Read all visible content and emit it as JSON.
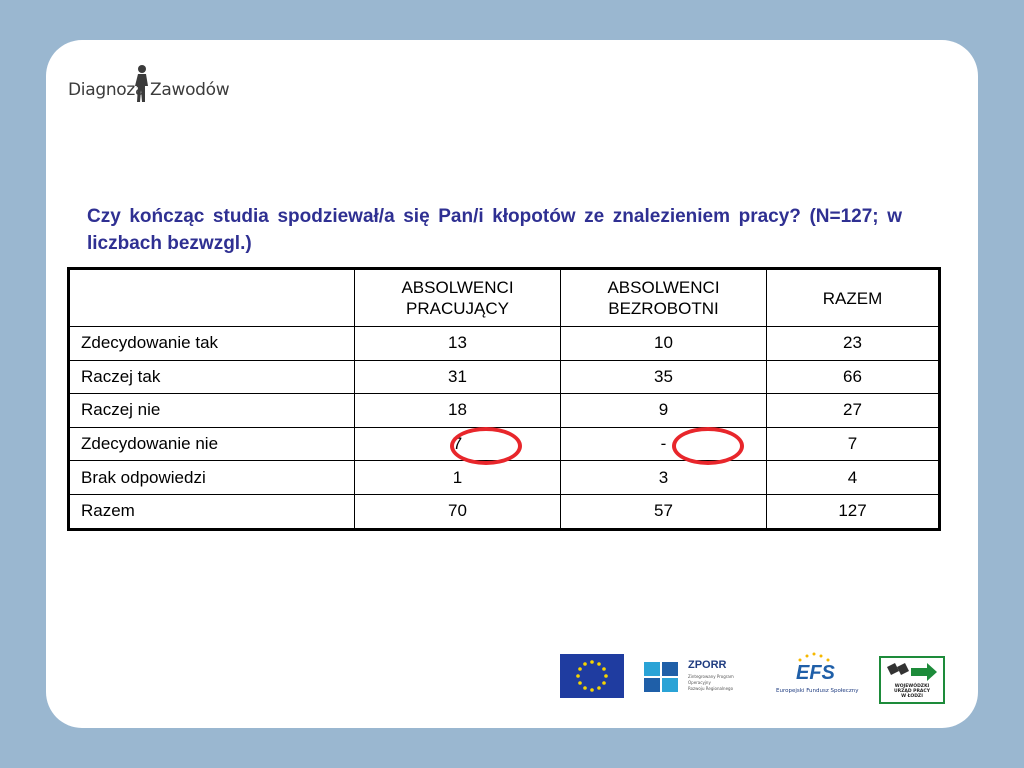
{
  "logo": {
    "part1": "Diagnoza",
    "part2": "Zawodów"
  },
  "question": "Czy kończąc studia spodziewał/a się Pan/i kłopotów ze znalezieniem pracy? (N=127; w liczbach bezwzgl.)",
  "table": {
    "headers": [
      "",
      [
        "ABSOLWENCI",
        "PRACUJĄCY"
      ],
      [
        "ABSOLWENCI",
        "BEZROBOTNI"
      ],
      "RAZEM"
    ],
    "rows": [
      {
        "label": "Zdecydowanie tak",
        "values": [
          "13",
          "10",
          "23"
        ]
      },
      {
        "label": "Raczej tak",
        "values": [
          "31",
          "35",
          "66"
        ]
      },
      {
        "label": "Raczej nie",
        "values": [
          "18",
          "9",
          "27"
        ]
      },
      {
        "label": "Zdecydowanie nie",
        "values": [
          "7",
          "-",
          "7"
        ]
      },
      {
        "label": "Brak odpowiedzi",
        "values": [
          "1",
          "3",
          "4"
        ]
      },
      {
        "label": "Razem",
        "values": [
          "70",
          "57",
          "127"
        ]
      }
    ]
  },
  "highlight_color": "#e8262b",
  "footer_logos": {
    "zporr": {
      "name": "ZPORR",
      "caption": [
        "Zintegrowany Program",
        "Operacyjny",
        "Rozwoju Regionalnego"
      ]
    },
    "efs": {
      "name": "EFS",
      "caption": "Europejski Fundusz Społeczny"
    },
    "wup": {
      "caption": [
        "WOJEWÓDZKI",
        "URZĄD PRACY",
        "W ŁODZI"
      ]
    }
  }
}
